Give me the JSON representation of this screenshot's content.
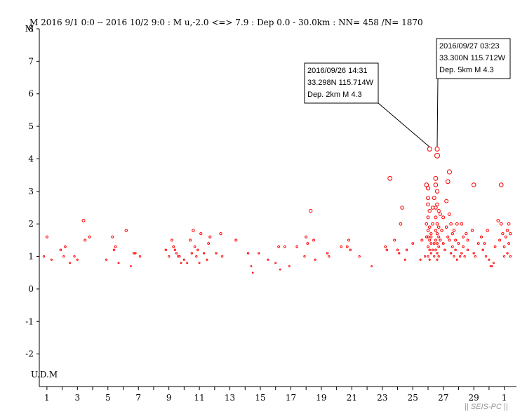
{
  "header": {
    "text": "M    2016 9/1 0:0 -- 2016 10/2 9:0  : M u,-2.0 <=> 7.9   :  Dep 0.0 - 30.0km :  NN= 458 /N= 1870"
  },
  "footer": {
    "label": "|| SEIS-PC ||"
  },
  "chart_data": {
    "type": "scatter",
    "title": "",
    "xlabel": "",
    "ylabel": "M",
    "ylim": [
      -3,
      8
    ],
    "xlim_days": [
      0.5,
      31.8
    ],
    "y_ticks": [
      "-2",
      "-1",
      "0",
      "1",
      "2",
      "3",
      "4",
      "5",
      "6",
      "7",
      "8"
    ],
    "y_bottom_label": "U.D.M",
    "x_tick_labels": [
      "1",
      "3",
      "5",
      "7",
      "9",
      "11",
      "13",
      "15",
      "17",
      "19",
      "21",
      "23",
      "25",
      "27",
      "29",
      "1"
    ],
    "marker_color": "#ff0000",
    "grid": false,
    "callouts": [
      {
        "lines": [
          "2016/09/26 14:31",
          "33.298N  115.714W",
          "Dep. 2km    M 4.3"
        ],
        "event": [
          26.1,
          4.3
        ]
      },
      {
        "lines": [
          "2016/09/27 03:23",
          "33.300N  115.712W",
          "Dep. 5km    M 4.3"
        ],
        "event": [
          26.6,
          4.3
        ]
      }
    ],
    "series": [
      {
        "name": "",
        "points": [
          [
            0.8,
            1.0
          ],
          [
            1.0,
            1.6
          ],
          [
            1.3,
            0.9
          ],
          [
            1.9,
            1.2
          ],
          [
            2.1,
            1.0
          ],
          [
            2.2,
            1.3
          ],
          [
            2.5,
            0.8
          ],
          [
            2.8,
            1.0
          ],
          [
            3.0,
            0.9
          ],
          [
            3.4,
            2.1
          ],
          [
            3.5,
            1.5
          ],
          [
            3.8,
            1.6
          ],
          [
            4.9,
            0.9
          ],
          [
            5.3,
            1.6
          ],
          [
            5.4,
            1.2
          ],
          [
            5.5,
            1.3
          ],
          [
            5.7,
            0.8
          ],
          [
            6.2,
            1.8
          ],
          [
            6.5,
            0.7
          ],
          [
            6.7,
            1.1
          ],
          [
            6.8,
            1.1
          ],
          [
            7.1,
            1.0
          ],
          [
            8.8,
            1.2
          ],
          [
            9.0,
            1.0
          ],
          [
            9.2,
            1.5
          ],
          [
            9.3,
            1.3
          ],
          [
            9.4,
            1.2
          ],
          [
            9.5,
            1.1
          ],
          [
            9.6,
            1.0
          ],
          [
            9.7,
            1.0
          ],
          [
            9.8,
            0.8
          ],
          [
            10.0,
            0.9
          ],
          [
            10.2,
            0.8
          ],
          [
            10.4,
            1.5
          ],
          [
            10.5,
            1.1
          ],
          [
            10.6,
            1.8
          ],
          [
            10.7,
            1.3
          ],
          [
            10.8,
            1.0
          ],
          [
            10.9,
            1.2
          ],
          [
            11.0,
            0.8
          ],
          [
            11.1,
            1.7
          ],
          [
            11.3,
            1.1
          ],
          [
            11.5,
            0.9
          ],
          [
            11.6,
            1.4
          ],
          [
            11.7,
            1.6
          ],
          [
            12.1,
            1.1
          ],
          [
            12.4,
            1.7
          ],
          [
            12.5,
            1.0
          ],
          [
            13.4,
            1.5
          ],
          [
            14.2,
            1.1
          ],
          [
            14.4,
            0.7
          ],
          [
            14.5,
            0.5
          ],
          [
            14.9,
            1.1
          ],
          [
            15.5,
            0.9
          ],
          [
            16.0,
            0.8
          ],
          [
            16.2,
            1.3
          ],
          [
            16.3,
            0.6
          ],
          [
            16.6,
            1.3
          ],
          [
            16.9,
            0.7
          ],
          [
            17.4,
            1.3
          ],
          [
            17.9,
            1.0
          ],
          [
            18.0,
            1.6
          ],
          [
            18.1,
            1.4
          ],
          [
            18.3,
            2.4
          ],
          [
            18.5,
            1.5
          ],
          [
            18.6,
            0.9
          ],
          [
            19.4,
            1.1
          ],
          [
            19.5,
            1.0
          ],
          [
            20.3,
            1.3
          ],
          [
            20.7,
            1.3
          ],
          [
            20.8,
            1.5
          ],
          [
            20.9,
            1.2
          ],
          [
            21.5,
            1.0
          ],
          [
            22.3,
            0.7
          ],
          [
            23.2,
            1.3
          ],
          [
            23.3,
            1.2
          ],
          [
            23.5,
            3.4
          ],
          [
            23.8,
            1.5
          ],
          [
            24.0,
            1.2
          ],
          [
            24.1,
            1.1
          ],
          [
            24.2,
            2.0
          ],
          [
            24.3,
            2.5
          ],
          [
            24.5,
            0.9
          ],
          [
            24.6,
            1.2
          ],
          [
            25.0,
            1.4
          ],
          [
            25.5,
            0.9
          ],
          [
            25.6,
            1.5
          ],
          [
            25.8,
            1.0
          ],
          [
            25.9,
            1.6
          ],
          [
            25.9,
            3.2
          ],
          [
            26.0,
            3.1
          ],
          [
            26.0,
            2.8
          ],
          [
            26.0,
            2.6
          ],
          [
            26.1,
            2.4
          ],
          [
            26.0,
            2.2
          ],
          [
            25.9,
            2.0
          ],
          [
            26.1,
            1.9
          ],
          [
            26.0,
            1.8
          ],
          [
            26.2,
            1.7
          ],
          [
            26.0,
            1.6
          ],
          [
            26.1,
            1.5
          ],
          [
            26.2,
            1.4
          ],
          [
            26.0,
            1.3
          ],
          [
            26.1,
            1.2
          ],
          [
            26.2,
            1.1
          ],
          [
            26.0,
            1.0
          ],
          [
            26.1,
            0.9
          ],
          [
            26.3,
            2.5
          ],
          [
            26.3,
            2.0
          ],
          [
            26.2,
            1.6
          ],
          [
            26.4,
            1.4
          ],
          [
            26.3,
            1.2
          ],
          [
            26.4,
            1.0
          ],
          [
            26.5,
            3.4
          ],
          [
            26.5,
            3.2
          ],
          [
            26.6,
            3.0
          ],
          [
            26.4,
            2.8
          ],
          [
            26.6,
            2.6
          ],
          [
            26.5,
            2.5
          ],
          [
            26.7,
            2.4
          ],
          [
            26.5,
            2.2
          ],
          [
            26.6,
            2.0
          ],
          [
            26.7,
            1.9
          ],
          [
            26.5,
            1.8
          ],
          [
            26.6,
            1.7
          ],
          [
            26.7,
            1.6
          ],
          [
            26.5,
            1.5
          ],
          [
            26.6,
            1.4
          ],
          [
            26.7,
            1.3
          ],
          [
            26.5,
            1.2
          ],
          [
            26.6,
            1.1
          ],
          [
            26.7,
            1.0
          ],
          [
            26.8,
            1.5
          ],
          [
            26.8,
            2.3
          ],
          [
            26.6,
            0.9
          ],
          [
            26.6,
            4.1
          ],
          [
            26.9,
            1.8
          ],
          [
            27.0,
            2.2
          ],
          [
            27.0,
            1.4
          ],
          [
            27.1,
            1.2
          ],
          [
            27.2,
            2.7
          ],
          [
            27.2,
            1.9
          ],
          [
            27.3,
            3.3
          ],
          [
            27.3,
            1.6
          ],
          [
            27.4,
            3.6
          ],
          [
            27.4,
            1.5
          ],
          [
            27.4,
            2.3
          ],
          [
            27.5,
            2.0
          ],
          [
            27.5,
            1.1
          ],
          [
            27.6,
            1.3
          ],
          [
            27.6,
            1.7
          ],
          [
            27.7,
            1.8
          ],
          [
            27.7,
            1.0
          ],
          [
            27.8,
            1.5
          ],
          [
            27.8,
            1.2
          ],
          [
            27.9,
            2.0
          ],
          [
            27.9,
            0.9
          ],
          [
            28.0,
            1.4
          ],
          [
            28.1,
            1.0
          ],
          [
            28.2,
            2.0
          ],
          [
            28.2,
            1.1
          ],
          [
            28.3,
            1.6
          ],
          [
            28.3,
            1.3
          ],
          [
            28.4,
            1.0
          ],
          [
            28.5,
            1.7
          ],
          [
            28.6,
            1.2
          ],
          [
            28.6,
            1.5
          ],
          [
            28.9,
            1.8
          ],
          [
            29.0,
            3.2
          ],
          [
            29.0,
            1.1
          ],
          [
            29.1,
            1.0
          ],
          [
            29.3,
            1.4
          ],
          [
            29.5,
            1.6
          ],
          [
            29.6,
            1.2
          ],
          [
            29.7,
            1.4
          ],
          [
            29.8,
            1.0
          ],
          [
            29.9,
            1.8
          ],
          [
            30.0,
            0.9
          ],
          [
            30.1,
            0.7
          ],
          [
            30.2,
            0.7
          ],
          [
            30.3,
            0.8
          ],
          [
            30.4,
            1.3
          ],
          [
            30.6,
            2.1
          ],
          [
            30.7,
            1.5
          ],
          [
            30.8,
            3.2
          ],
          [
            30.8,
            2.0
          ],
          [
            30.9,
            1.7
          ],
          [
            31.0,
            1.3
          ],
          [
            31.0,
            1.0
          ],
          [
            31.1,
            1.6
          ],
          [
            31.2,
            1.8
          ],
          [
            31.2,
            1.1
          ],
          [
            31.3,
            2.0
          ],
          [
            31.3,
            1.4
          ],
          [
            31.4,
            1.7
          ],
          [
            31.4,
            1.0
          ]
        ]
      }
    ]
  }
}
